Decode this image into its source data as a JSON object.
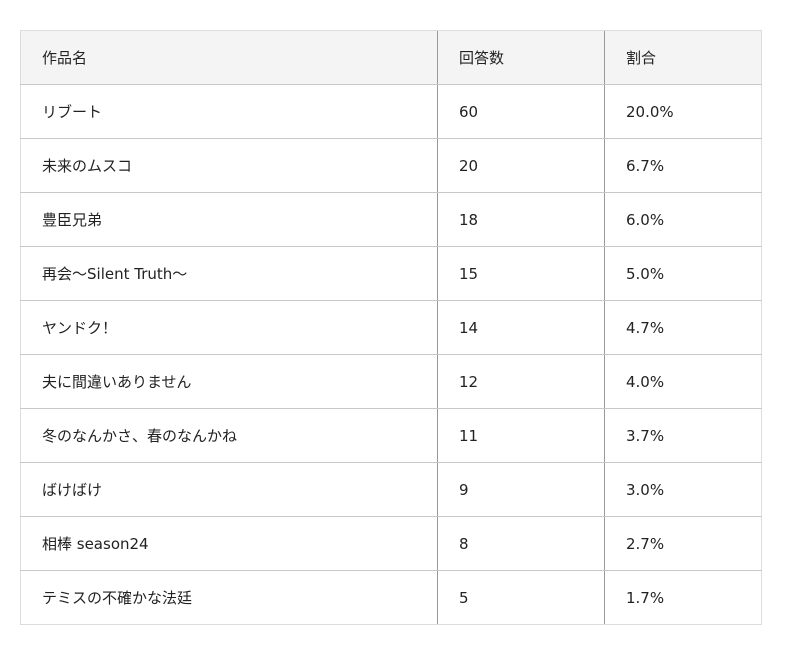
{
  "table": {
    "headers": [
      "作品名",
      "回答数",
      "割合"
    ],
    "rows": [
      [
        "リブート",
        "60",
        "20.0%"
      ],
      [
        "未来のムスコ",
        "20",
        "6.7%"
      ],
      [
        "豊臣兄弟",
        "18",
        "6.0%"
      ],
      [
        "再会〜Silent Truth〜",
        "15",
        "5.0%"
      ],
      [
        "ヤンドク！",
        "14",
        "4.7%"
      ],
      [
        "夫に間違いありません",
        "12",
        "4.0%"
      ],
      [
        "冬のなんかさ、春のなんかね",
        "11",
        "3.7%"
      ],
      [
        "ばけばけ",
        "9",
        "3.0%"
      ],
      [
        "相棒 season24",
        "8",
        "2.7%"
      ],
      [
        "テミスの不確かな法廷",
        "5",
        "1.7%"
      ]
    ]
  }
}
